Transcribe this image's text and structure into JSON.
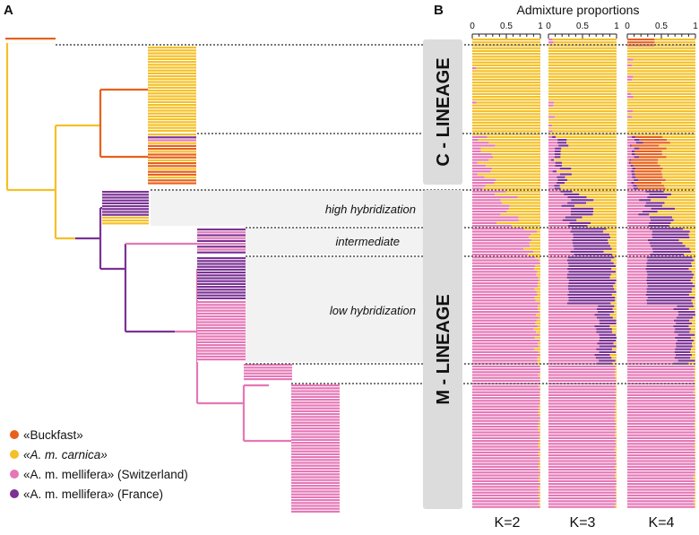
{
  "panel_a": {
    "label": "A",
    "legend": [
      {
        "key": "buckfast",
        "text": "«Buckfast»",
        "color": "#E8601C"
      },
      {
        "key": "carnica",
        "text": "«A. m. carnica»",
        "color": "#F5C027"
      },
      {
        "key": "mellifera_ch",
        "text": "«A. m. mellifera» (Switzerland)",
        "color": "#E677B7"
      },
      {
        "key": "mellifera_fr",
        "text": "«A. m. mellifera» (France)",
        "color": "#7B3294"
      }
    ]
  },
  "panel_b": {
    "label": "B",
    "title": "Admixture proportions",
    "ticks": [
      "0",
      "0.5",
      "1"
    ],
    "k_labels": [
      "K=2",
      "K=3",
      "K=4"
    ]
  },
  "lineages": {
    "c": "C - LINEAGE",
    "m": "M - LINEAGE"
  },
  "groups": {
    "high": "high hybridization",
    "intermediate": "intermediate",
    "low": "low hybridization"
  },
  "colors": {
    "buckfast": "#E8601C",
    "carnica": "#F5C027",
    "mellifera_ch": "#E677B7",
    "mellifera_fr": "#7B3294",
    "lineage_box": "#DCDCDC",
    "group_box": "#F2F2F2",
    "guide_line": "#666666"
  }
}
